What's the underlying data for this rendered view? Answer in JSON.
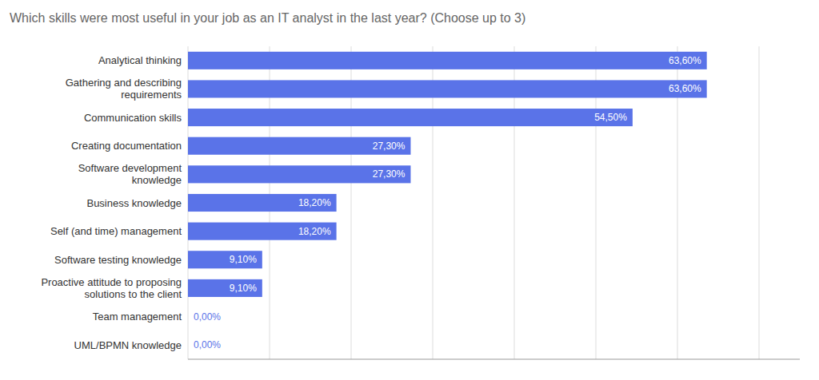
{
  "chart_data": {
    "type": "bar",
    "orientation": "horizontal",
    "title": "Which skills were most useful in your job as an IT analyst in the last year? (Choose up to 3)",
    "categories": [
      "UML/BPMN knowledge",
      "Team management",
      "Proactive attitude to proposing\nsolutions to the client",
      "Software testing knowledge",
      "Self (and time) management",
      "Business knowledge",
      "Software development\nknowledge",
      "Creating documentation",
      "Communication skills",
      "Gathering and describing\nrequirements",
      "Analytical thinking"
    ],
    "values": [
      0.0,
      0.0,
      9.1,
      9.1,
      18.2,
      18.2,
      27.3,
      27.3,
      54.5,
      63.6,
      63.6
    ],
    "value_labels": [
      "0,00%",
      "0,00%",
      "9,10%",
      "9,10%",
      "18,20%",
      "18,20%",
      "27,30%",
      "27,30%",
      "54,50%",
      "63,60%",
      "63,60%"
    ],
    "data_labels": true,
    "color": "#5a73e8",
    "xlim": [
      0,
      75
    ],
    "xticks": [
      0,
      10,
      20,
      30,
      40,
      50,
      60,
      70
    ],
    "grid": true,
    "tick_labels": "y"
  }
}
